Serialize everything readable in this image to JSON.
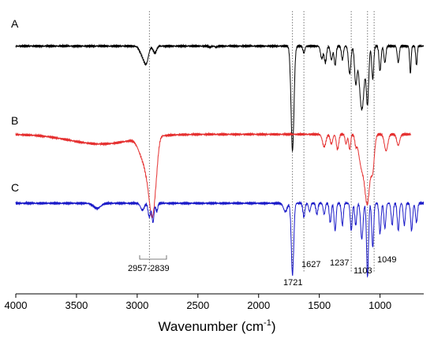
{
  "chart_data": {
    "type": "line",
    "title": "",
    "xlabel": "Wavenumber (cm",
    "xlabel_sup": "-1",
    "xlabel_close": ")",
    "ylabel": "",
    "x_reversed": true,
    "xlim": [
      4000,
      640
    ],
    "ylim": [
      0,
      10
    ],
    "grid": false,
    "legend": "none",
    "xticks": [
      4000,
      3500,
      3000,
      2500,
      2000,
      1500,
      1000
    ],
    "series": [
      {
        "name": "A",
        "color": "#000000",
        "base": 8.9,
        "range": [
          4000,
          640
        ],
        "peaks": [
          [
            2957,
            0.3,
            22
          ],
          [
            2925,
            0.55,
            18
          ],
          [
            2855,
            0.25,
            14
          ],
          [
            2400,
            0.04,
            10
          ],
          [
            2350,
            0.04,
            10
          ],
          [
            1721,
            3.8,
            12
          ],
          [
            1627,
            0.25,
            8
          ],
          [
            1480,
            0.45,
            10
          ],
          [
            1450,
            0.6,
            9
          ],
          [
            1400,
            0.5,
            9
          ],
          [
            1370,
            0.7,
            8
          ],
          [
            1310,
            0.5,
            8
          ],
          [
            1250,
            1.0,
            10
          ],
          [
            1200,
            1.3,
            10
          ],
          [
            1150,
            2.3,
            20
          ],
          [
            1103,
            2.0,
            10
          ],
          [
            1060,
            1.2,
            8
          ],
          [
            1000,
            0.9,
            8
          ],
          [
            960,
            0.6,
            8
          ],
          [
            850,
            0.6,
            8
          ],
          [
            750,
            1.0,
            6
          ],
          [
            700,
            0.7,
            6
          ]
        ]
      },
      {
        "name": "B",
        "color": "#e53030",
        "base": 5.7,
        "range": [
          4000,
          745
        ],
        "peaks": [
          [
            3300,
            0.35,
            260
          ],
          [
            2957,
            0.6,
            35
          ],
          [
            2900,
            1.4,
            30
          ],
          [
            2870,
            1.9,
            22
          ],
          [
            2839,
            0.5,
            16
          ],
          [
            1460,
            0.45,
            14
          ],
          [
            1400,
            0.35,
            10
          ],
          [
            1350,
            0.55,
            10
          ],
          [
            1280,
            0.35,
            8
          ],
          [
            1250,
            0.55,
            8
          ],
          [
            1200,
            0.3,
            8
          ],
          [
            1150,
            1.2,
            25
          ],
          [
            1103,
            2.3,
            20
          ],
          [
            1060,
            1.2,
            14
          ],
          [
            950,
            0.6,
            14
          ],
          [
            850,
            0.4,
            12
          ]
        ]
      },
      {
        "name": "C",
        "color": "#1a1ac8",
        "base": 3.2,
        "range": [
          4000,
          640
        ],
        "peaks": [
          [
            3330,
            0.18,
            30
          ],
          [
            2957,
            0.25,
            15
          ],
          [
            2900,
            0.5,
            10
          ],
          [
            2870,
            0.7,
            8
          ],
          [
            2839,
            0.3,
            8
          ],
          [
            1780,
            0.3,
            15
          ],
          [
            1721,
            2.6,
            10
          ],
          [
            1627,
            0.5,
            8
          ],
          [
            1580,
            0.3,
            8
          ],
          [
            1520,
            0.4,
            8
          ],
          [
            1460,
            0.4,
            8
          ],
          [
            1410,
            0.7,
            8
          ],
          [
            1370,
            1.0,
            8
          ],
          [
            1310,
            0.8,
            8
          ],
          [
            1237,
            1.0,
            8
          ],
          [
            1200,
            0.8,
            8
          ],
          [
            1150,
            1.3,
            10
          ],
          [
            1103,
            2.7,
            8
          ],
          [
            1060,
            1.6,
            8
          ],
          [
            1000,
            1.1,
            8
          ],
          [
            960,
            0.9,
            8
          ],
          [
            900,
            0.8,
            8
          ],
          [
            850,
            1.0,
            8
          ],
          [
            800,
            0.8,
            8
          ],
          [
            740,
            1.0,
            8
          ],
          [
            700,
            0.7,
            8
          ]
        ]
      }
    ],
    "guides": [
      2900,
      1721,
      1627,
      1237,
      1103,
      1049
    ],
    "annotations": [
      {
        "id": "ann-2957-2839",
        "text": "2957-2839",
        "x1": 2957,
        "x2": 2839
      },
      {
        "id": "ann-1721",
        "text": "1721",
        "x": 1721
      },
      {
        "id": "ann-1627",
        "text": "1627",
        "x": 1627
      },
      {
        "id": "ann-1237",
        "text": "1237",
        "x": 1237
      },
      {
        "id": "ann-1103",
        "text": "1103",
        "x": 1103
      },
      {
        "id": "ann-1049",
        "text": "1049",
        "x": 1049
      }
    ]
  }
}
